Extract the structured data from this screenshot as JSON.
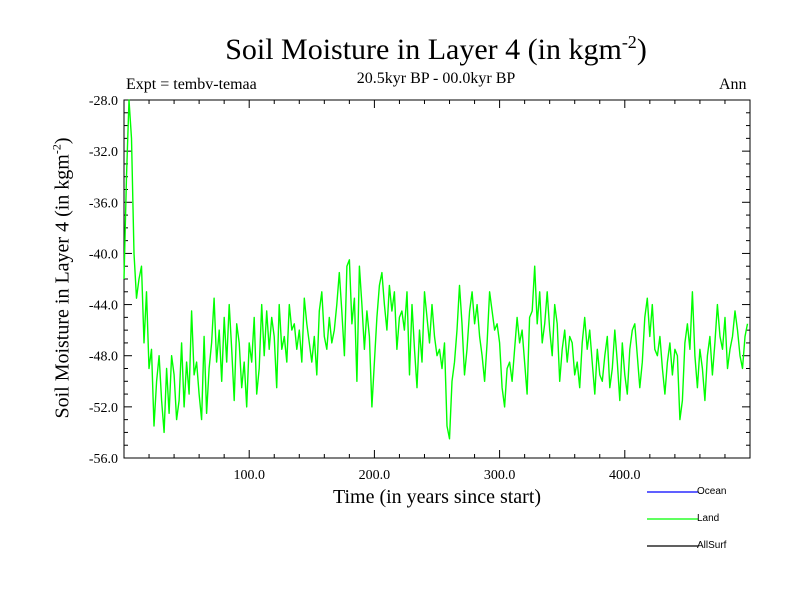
{
  "title": {
    "main": "Soil Moisture in Layer 4 (in kgm",
    "sup": "-2",
    "close": ")"
  },
  "header": {
    "left": "Expt = tembv-temaa",
    "center": "20.5kyr BP - 00.0kyr BP",
    "right": "Ann"
  },
  "chart_data": {
    "type": "line",
    "title": "Soil Moisture in Layer 4 (in kgm-2)",
    "xlabel": "Time (in years since start)",
    "ylabel": {
      "main": "Soil Moisture in Layer 4 (in kgm",
      "sup": "-2",
      "close": ")"
    },
    "xlim": [
      0,
      500
    ],
    "ylim": [
      -56,
      -28
    ],
    "xticks": [
      100,
      200,
      300,
      400
    ],
    "xtick_labels": [
      "100.0",
      "200.0",
      "300.0",
      "400.0"
    ],
    "yticks": [
      -28,
      -32,
      -36,
      -40,
      -44,
      -48,
      -52,
      -56
    ],
    "ytick_labels": [
      "-28.0",
      "-32.0",
      "-36.0",
      "-40.0",
      "-44.0",
      "-48.0",
      "-52.0",
      "-56.0"
    ],
    "legend": [
      {
        "name": "Ocean",
        "color": "#0000ff"
      },
      {
        "name": "Land",
        "color": "#00ff00"
      },
      {
        "name": "AllSurf",
        "color": "#000000"
      }
    ],
    "series": [
      {
        "name": "Land",
        "color": "#00ff00",
        "x": [
          0,
          2,
          4,
          6,
          8,
          10,
          12,
          14,
          16,
          18,
          20,
          22,
          24,
          26,
          28,
          30,
          32,
          34,
          36,
          38,
          40,
          42,
          44,
          46,
          48,
          50,
          52,
          54,
          56,
          58,
          60,
          62,
          64,
          66,
          68,
          70,
          72,
          74,
          76,
          78,
          80,
          82,
          84,
          86,
          88,
          90,
          92,
          94,
          96,
          98,
          100,
          102,
          104,
          106,
          108,
          110,
          112,
          114,
          116,
          118,
          120,
          122,
          124,
          126,
          128,
          130,
          132,
          134,
          136,
          138,
          140,
          142,
          144,
          146,
          148,
          150,
          152,
          154,
          156,
          158,
          160,
          162,
          164,
          166,
          168,
          170,
          172,
          174,
          176,
          178,
          180,
          182,
          184,
          186,
          188,
          190,
          192,
          194,
          196,
          198,
          200,
          202,
          204,
          206,
          208,
          210,
          212,
          214,
          216,
          218,
          220,
          222,
          224,
          226,
          228,
          230,
          232,
          234,
          236,
          238,
          240,
          242,
          244,
          246,
          248,
          250,
          252,
          254,
          256,
          258,
          260,
          262,
          264,
          266,
          268,
          270,
          272,
          274,
          276,
          278,
          280,
          282,
          284,
          286,
          288,
          290,
          292,
          294,
          296,
          298,
          300,
          302,
          304,
          306,
          308,
          310,
          312,
          314,
          316,
          318,
          320,
          322,
          324,
          326,
          328,
          330,
          332,
          334,
          336,
          338,
          340,
          342,
          344,
          346,
          348,
          350,
          352,
          354,
          356,
          358,
          360,
          362,
          364,
          366,
          368,
          370,
          372,
          374,
          376,
          378,
          380,
          382,
          384,
          386,
          388,
          390,
          392,
          394,
          396,
          398,
          400,
          402,
          404,
          406,
          408,
          410,
          412,
          414,
          416,
          418,
          420,
          422,
          424,
          426,
          428,
          430,
          432,
          434,
          436,
          438,
          440,
          442,
          444,
          446,
          448,
          450,
          452,
          454,
          456,
          458,
          460,
          462,
          464,
          466,
          468,
          470,
          472,
          474,
          476,
          478,
          480,
          482,
          484,
          486,
          488,
          490,
          492,
          494,
          496,
          498
        ],
        "values": [
          -42.0,
          -34.0,
          -28.0,
          -31.0,
          -40.0,
          -43.5,
          -42.0,
          -41.0,
          -47.0,
          -43.0,
          -49.0,
          -47.5,
          -53.5,
          -50.0,
          -48.0,
          -51.5,
          -54.0,
          -49.0,
          -52.5,
          -48.0,
          -49.5,
          -53.0,
          -51.5,
          -47.0,
          -52.0,
          -48.5,
          -51.0,
          -44.5,
          -49.5,
          -48.5,
          -51.0,
          -53.0,
          -46.5,
          -52.5,
          -49.0,
          -47.0,
          -43.5,
          -48.5,
          -46.0,
          -50.0,
          -45.0,
          -48.5,
          -44.0,
          -47.5,
          -51.5,
          -45.5,
          -47.0,
          -50.5,
          -48.5,
          -52.0,
          -47.0,
          -48.5,
          -45.0,
          -51.0,
          -49.0,
          -44.0,
          -48.0,
          -44.5,
          -47.5,
          -45.0,
          -46.5,
          -50.5,
          -44.0,
          -47.5,
          -46.5,
          -48.5,
          -44.0,
          -46.0,
          -45.5,
          -47.5,
          -46.0,
          -48.5,
          -43.5,
          -45.5,
          -47.0,
          -48.5,
          -46.5,
          -49.5,
          -44.5,
          -43.0,
          -46.5,
          -47.5,
          -45.0,
          -47.0,
          -46.0,
          -44.0,
          -41.5,
          -44.5,
          -48.0,
          -41.0,
          -40.5,
          -45.5,
          -43.5,
          -50.0,
          -41.0,
          -44.0,
          -47.5,
          -44.5,
          -46.5,
          -52.0,
          -48.5,
          -45.0,
          -42.5,
          -41.5,
          -44.0,
          -46.0,
          -42.5,
          -44.5,
          -43.0,
          -47.5,
          -45.0,
          -44.5,
          -46.0,
          -43.0,
          -49.5,
          -44.0,
          -47.5,
          -50.5,
          -46.0,
          -48.5,
          -43.0,
          -45.0,
          -47.0,
          -44.0,
          -46.5,
          -48.0,
          -47.5,
          -49.0,
          -47.0,
          -53.5,
          -54.5,
          -50.0,
          -48.5,
          -46.0,
          -42.5,
          -45.5,
          -49.5,
          -47.5,
          -44.5,
          -43.0,
          -45.5,
          -44.0,
          -46.5,
          -48.0,
          -50.0,
          -47.0,
          -43.0,
          -44.5,
          -46.0,
          -45.5,
          -47.0,
          -50.5,
          -52.0,
          -49.0,
          -48.5,
          -50.0,
          -47.5,
          -45.0,
          -47.0,
          -46.0,
          -48.5,
          -51.0,
          -45.0,
          -44.5,
          -41.0,
          -45.5,
          -43.0,
          -47.0,
          -45.5,
          -43.0,
          -46.0,
          -48.0,
          -44.0,
          -45.5,
          -50.0,
          -47.5,
          -46.0,
          -48.5,
          -46.5,
          -47.0,
          -49.5,
          -48.5,
          -50.5,
          -47.0,
          -45.0,
          -47.5,
          -46.0,
          -48.5,
          -51.0,
          -47.5,
          -49.5,
          -50.0,
          -48.0,
          -46.5,
          -50.5,
          -49.0,
          -46.0,
          -48.5,
          -51.5,
          -47.0,
          -49.5,
          -51.0,
          -47.5,
          -46.0,
          -45.5,
          -48.0,
          -50.5,
          -48.5,
          -45.0,
          -43.5,
          -46.5,
          -44.0,
          -47.5,
          -48.0,
          -46.5,
          -49.0,
          -51.0,
          -48.5,
          -47.0,
          -49.5,
          -47.5,
          -48.0,
          -53.0,
          -51.5,
          -47.0,
          -45.5,
          -47.5,
          -43.0,
          -48.0,
          -50.5,
          -47.5,
          -49.0,
          -51.5,
          -48.0,
          -46.5,
          -49.5,
          -47.0,
          -44.0,
          -46.5,
          -47.5,
          -45.0,
          -49.0,
          -47.5,
          -46.5,
          -44.5,
          -46.0,
          -48.0,
          -49.0,
          -46.5,
          -45.5
        ]
      }
    ]
  }
}
